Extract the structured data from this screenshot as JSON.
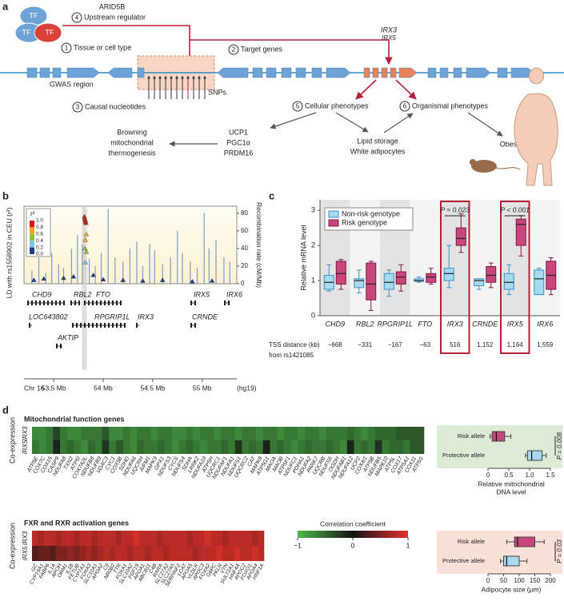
{
  "panel_labels": [
    "a",
    "b",
    "c",
    "d"
  ],
  "panel_a": {
    "tf": [
      "TF",
      "TF",
      "TF"
    ],
    "regulator": "ARID5B",
    "steps": [
      {
        "number": 4,
        "text": "Upstream regulator"
      },
      {
        "number": 1,
        "text": "Tissue or cell type"
      },
      {
        "number": 2,
        "text": "Target genes"
      },
      {
        "number": 3,
        "text": "Causal nucleotides"
      },
      {
        "number": 5,
        "text": "Cellular phenotypes"
      },
      {
        "number": 6,
        "text": "Organismal phenotypes"
      }
    ],
    "target_genes": [
      "IRX3",
      "IRX5"
    ],
    "gwas": "GWAS region",
    "snps": "SNPs",
    "browning_genes": [
      "UCP1",
      "PGC1α",
      "PRDM16"
    ],
    "browning": [
      "Browning",
      "mitochondrial",
      "thermogenesis"
    ],
    "lipid": [
      "Lipid storage",
      "White adipocytes"
    ],
    "obesity": "Obesity"
  },
  "chart_data": [
    {
      "type": "ld",
      "ylabel": "LD with rs1558902 in CEU (r²)",
      "y2label": "Recombination rate (cM/Mb)",
      "x": [
        53.81,
        53.815,
        53.82,
        53.82,
        53.825,
        53.83,
        53.82,
        53.815,
        53.83,
        53.82,
        53.6,
        53.7,
        53.9,
        54.0,
        54.2,
        54.4,
        54.6,
        54.9,
        55.1,
        53.4,
        53.3
      ],
      "values": [
        0.95,
        0.92,
        0.9,
        0.88,
        0.86,
        0.7,
        0.62,
        0.5,
        0.45,
        0.3,
        0.08,
        0.1,
        0.12,
        0.06,
        0.05,
        0.04,
        0.05,
        0.03,
        0.04,
        0.07,
        0.05
      ],
      "recombination": {
        "color": "#7c9ccb",
        "x": [
          53.28,
          53.35,
          53.42,
          53.48,
          53.55,
          53.6,
          53.68,
          53.74,
          53.79,
          53.86,
          53.92,
          53.98,
          54.05,
          54.12,
          54.2,
          54.27,
          54.34,
          54.4,
          54.47,
          54.52,
          54.6,
          54.68,
          54.75,
          54.8,
          54.88,
          54.95,
          55.02,
          55.07,
          55.14,
          55.22,
          55.28
        ],
        "values": [
          15,
          30,
          12,
          35,
          22,
          18,
          40,
          55,
          45,
          28,
          20,
          35,
          85,
          30,
          25,
          40,
          48,
          20,
          45,
          38,
          22,
          30,
          60,
          35,
          25,
          18,
          80,
          40,
          50,
          30,
          25
        ]
      },
      "xlim": [
        53.2,
        55.35
      ],
      "xticks": [
        {
          "value": 53.5,
          "label": "53.5 Mb"
        },
        {
          "value": 54,
          "label": "54 Mb"
        },
        {
          "value": 54.5,
          "label": "54.5 Mb"
        },
        {
          "value": 55,
          "label": "55 Mb"
        }
      ],
      "ylim": [
        0,
        1.1
      ],
      "y2lim": [
        0,
        88
      ],
      "y2ticks": [
        0,
        20,
        40,
        60,
        80
      ],
      "legend_title": "r²",
      "legend_ticks": [
        {
          "value": 1,
          "label": "1.0"
        },
        0.8,
        0.6,
        0.4,
        0.2,
        {
          "value": 0,
          "label": "0.0"
        }
      ],
      "legend_colors": [
        "#d7191c",
        "#f5a623",
        "#8cc63f",
        "#7ec8e3",
        "#1f3f8f"
      ],
      "chromosome": "Chr 16",
      "assembly": "(hg19)",
      "genes": [
        "CHD9",
        "RBL2",
        "FTO",
        "IRX5",
        "IRX6",
        "LOC643802",
        "RPGRIP1L",
        "IRX3",
        "CRNDE",
        "AKTIP"
      ]
    },
    {
      "type": "box",
      "ylabel": "Relative mRNA level",
      "categories": [
        "CHD9",
        "RBL2",
        "RPGRIP1L",
        "FTO",
        "IRX3",
        "CRNDE",
        "IRX5",
        "IRX6"
      ],
      "series": [
        {
          "name": "Non-risk genotype",
          "color": "#a9d9ef",
          "stroke": "#3f8fc2",
          "values": [
            [
              0.7,
              0.75,
              0.95,
              1.15,
              1.45
            ],
            [
              0.65,
              0.8,
              1.0,
              1.05,
              1.3
            ],
            [
              0.55,
              0.75,
              0.95,
              1.2,
              1.3
            ],
            [
              0.95,
              0.98,
              1.0,
              1.05,
              1.1
            ],
            [
              0.8,
              1.0,
              1.2,
              1.35,
              2.0
            ],
            [
              0.75,
              0.85,
              1.0,
              1.05,
              1.05
            ],
            [
              0.6,
              0.75,
              0.95,
              1.2,
              1.45
            ],
            [
              0.6,
              0.6,
              1.05,
              1.3,
              1.35
            ]
          ]
        },
        {
          "name": "Risk genotype",
          "color": "#c9467c",
          "stroke": "#7d1a45",
          "values": [
            [
              0.75,
              0.9,
              1.2,
              1.55,
              1.6
            ],
            [
              0.15,
              0.45,
              0.9,
              1.5,
              1.55
            ],
            [
              0.7,
              0.9,
              1.1,
              1.25,
              1.45
            ],
            [
              0.9,
              0.95,
              1.1,
              1.2,
              1.35
            ],
            [
              1.8,
              2.0,
              2.2,
              2.5,
              2.9
            ],
            [
              0.8,
              0.95,
              1.15,
              1.4,
              1.5
            ],
            [
              1.7,
              2.0,
              2.6,
              2.75,
              2.85
            ],
            [
              0.6,
              0.75,
              1.15,
              1.55,
              1.65
            ]
          ]
        }
      ],
      "ylim": [
        0,
        3.3
      ],
      "yticks": [
        0,
        1,
        2,
        3
      ],
      "legend": "top-left",
      "p_values": [
        null,
        null,
        null,
        null,
        "P = 0.023",
        null,
        "P < 0.001",
        null
      ],
      "highlight_color": "#b5213a",
      "table_label": [
        "TSS distance (kb)",
        "from rs1421085"
      ],
      "tss_distance": [
        "−668",
        "−331",
        "−167",
        "−63",
        "516",
        "1,152",
        "1,164",
        "1,559"
      ]
    },
    {
      "type": "heatmap",
      "title": "Mitochondrial function genes",
      "ylabel": "Co-expression",
      "rows": [
        "IRX3",
        "IRX5"
      ],
      "columns": [
        "ATP5E",
        "COX7C",
        "COX15",
        "CASP9",
        "NDUFA8",
        "TXN2",
        "ATP5I",
        "COX7A2L",
        "NDUFB8",
        "NDUFB9",
        "VDAC3",
        "CYC1",
        "COX5B",
        "SDHD",
        "NDUFA6",
        "UQCRH",
        "AIFM1",
        "MAPK9",
        "GPX1",
        "NDUFS3",
        "CYCS",
        "NDUFS4",
        "SDHA",
        "LRRK2",
        "NDUFA10",
        "ATP5H",
        "UQCRC1",
        "NDUFAF1",
        "NDUFA1",
        "NDUFS1",
        "UQCRC2",
        "CAT",
        "MAPK8",
        "ATP5G1",
        "MAOA",
        "MAOB",
        "ATP5F1",
        "NDUFC1",
        "PDHA1",
        "NDUFA2",
        "PARK7",
        "UQCRB",
        "NDUFS6",
        "OGDH",
        "NDUFAB1",
        "NDUFA12",
        "UCP2",
        "COX4I1",
        "ATP5B",
        "NDUFB5",
        "MAPK10",
        "ATP5L",
        "COX17",
        "ATP5A1",
        "COX11",
        "ATP5S"
      ],
      "values": [
        [
          -0.7,
          -0.7,
          -0.6,
          -0.3,
          -0.6,
          -0.7,
          -0.7,
          -0.6,
          -0.6,
          -0.6,
          -0.4,
          -0.7,
          -0.7,
          -0.6,
          -0.7,
          -0.6,
          -0.6,
          -0.7,
          -0.6,
          -0.6,
          -0.7,
          -0.7,
          -0.6,
          -0.7,
          -0.6,
          -0.6,
          -0.7,
          -0.6,
          -0.6,
          -0.7,
          -0.6,
          -0.6,
          -0.7,
          -0.6,
          -0.6,
          -0.7,
          -0.6,
          -0.6,
          -0.7,
          -0.6,
          -0.6,
          -0.7,
          -0.6,
          -0.6,
          -0.6,
          -0.5,
          -0.6,
          -0.7,
          -0.6,
          -0.5,
          -0.5,
          -0.5,
          -0.4,
          -0.4,
          -0.4,
          -0.4
        ],
        [
          -0.6,
          -0.7,
          -0.6,
          -0.1,
          -0.6,
          -0.5,
          -0.6,
          -0.7,
          -0.5,
          -0.6,
          -0.2,
          -0.6,
          -0.4,
          -0.6,
          -0.7,
          -0.5,
          -0.6,
          -0.6,
          -0.5,
          -0.6,
          -0.7,
          -0.6,
          -0.5,
          -0.6,
          -0.7,
          -0.6,
          -0.6,
          -0.5,
          -0.6,
          -0.2,
          -0.6,
          -0.5,
          -0.6,
          -0.1,
          -0.6,
          -0.5,
          -0.6,
          -0.7,
          -0.6,
          -0.5,
          -0.6,
          -0.6,
          -0.5,
          -0.6,
          -0.7,
          -0.1,
          -0.6,
          -0.5,
          -0.6,
          -0.2,
          -0.6,
          -0.5,
          -0.5,
          -0.6,
          -0.4,
          -0.4
        ]
      ],
      "zlim": [
        -1,
        1
      ],
      "colorscale": [
        "#4dbb4a",
        "#141414",
        "#e5312b"
      ]
    },
    {
      "type": "heatmap",
      "title": "FXR and RXR activation genes",
      "ylabel": "Co-expression",
      "rows": [
        "IRX3",
        "IRX5"
      ],
      "columns": [
        "GC",
        "CYP19A1",
        "FABP6",
        "IL1A",
        "APOH",
        "ORM1",
        "IL1B",
        "FETUB",
        "CYP7A1",
        "FOXA3",
        "SLC10A1",
        "APOA2",
        "C9",
        "NR0B2",
        "TTR",
        "FOXA1",
        "SLC10A2",
        "FGF19",
        "APOA1",
        "ABCB11",
        "C4B",
        "RARA",
        "SLC27A2",
        "SLC27A5",
        "SERPINF2",
        "LCAT",
        "APOA5",
        "VLDLR",
        "APOC3",
        "FOXA2",
        "G6PC",
        "PKLR",
        "VTN",
        "SULT2A1",
        "HNF4A",
        "APOC2",
        "FOXO1",
        "APOA4",
        "HNF1A"
      ],
      "values": [
        [
          0.8,
          0.7,
          0.8,
          0.8,
          0.7,
          0.8,
          0.8,
          0.7,
          0.8,
          0.8,
          0.7,
          0.8,
          0.8,
          0.8,
          0.7,
          0.8,
          0.8,
          0.9,
          0.8,
          0.8,
          0.8,
          0.7,
          0.8,
          0.8,
          0.8,
          0.8,
          0.7,
          0.8,
          0.8,
          0.9,
          0.8,
          0.8,
          0.7,
          0.8,
          0.8,
          0.8,
          0.8,
          0.7,
          0.8
        ],
        [
          0.3,
          0.4,
          0.4,
          0.3,
          0.5,
          0.5,
          0.6,
          0.5,
          0.6,
          0.7,
          0.6,
          0.7,
          0.8,
          0.7,
          0.8,
          0.8,
          0.7,
          0.8,
          0.8,
          0.7,
          0.8,
          0.8,
          0.7,
          0.8,
          0.8,
          0.8,
          0.8,
          0.7,
          0.8,
          0.8,
          0.8,
          0.9,
          0.8,
          0.8,
          0.9,
          0.8,
          0.8,
          0.9,
          0.8
        ]
      ],
      "zlim": [
        -1,
        1
      ],
      "colorscale": [
        "#4dbb4a",
        "#141414",
        "#e5312b"
      ],
      "colorbar": {
        "title": "Correlation coefficient",
        "ticks": [
          {
            "value": -1,
            "label": "−1"
          },
          0,
          1
        ]
      }
    },
    {
      "type": "hbox",
      "categories": [
        "Risk allele",
        "Protective allele"
      ],
      "colors": [
        "#c9467c",
        "#a9d9ef"
      ],
      "values": [
        [
          0.05,
          0.1,
          0.2,
          0.4,
          0.55
        ],
        [
          0.9,
          0.95,
          1.05,
          1.3,
          1.4
        ]
      ],
      "xlim": [
        0,
        1.5
      ],
      "xticks": [
        0,
        0.5,
        {
          "value": 1,
          "label": "1.0"
        },
        1.5
      ],
      "xlabel": [
        "Relative mitochondrial",
        "DNA level"
      ],
      "p_value": "P = 0.008",
      "background": "#dcebd6"
    },
    {
      "type": "hbox",
      "categories": [
        "Risk allele",
        "Protective allele"
      ],
      "colors": [
        "#c9467c",
        "#a9d9ef"
      ],
      "values": [
        [
          60,
          85,
          95,
          150,
          180
        ],
        [
          40,
          50,
          60,
          100,
          125
        ]
      ],
      "xlim": [
        0,
        200
      ],
      "xticks": [
        0,
        50,
        100,
        150,
        200
      ],
      "xlabel": [
        "Adipocyte size (μm)"
      ],
      "p_value": "P = 0.03",
      "background": "#f9e0d8"
    }
  ]
}
